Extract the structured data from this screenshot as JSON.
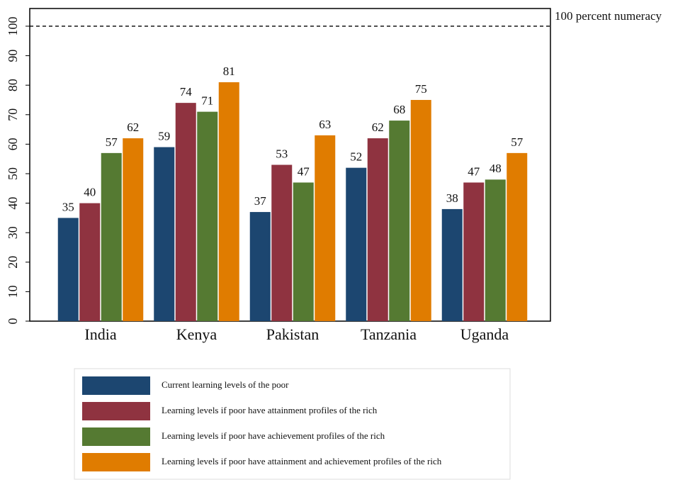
{
  "chart_data": {
    "type": "bar",
    "categories": [
      "India",
      "Kenya",
      "Pakistan",
      "Tanzania",
      "Uganda"
    ],
    "series": [
      {
        "name": "Current learning levels of the poor",
        "color": "#1c4670",
        "values": [
          35,
          59,
          37,
          52,
          38
        ]
      },
      {
        "name": "Learning levels if poor have attainment profiles of the rich",
        "color": "#8f3340",
        "values": [
          40,
          74,
          53,
          62,
          47
        ]
      },
      {
        "name": "Learning levels if poor have achievement profiles of the rich",
        "color": "#557a32",
        "values": [
          57,
          71,
          47,
          68,
          48
        ]
      },
      {
        "name": "Learning levels if poor have attainment and achievement profiles of the rich",
        "color": "#e07c00",
        "values": [
          62,
          81,
          63,
          75,
          57
        ]
      }
    ],
    "ylim": [
      0,
      106
    ],
    "yticks": [
      0,
      10,
      20,
      30,
      40,
      50,
      60,
      70,
      80,
      90,
      100
    ],
    "reference_line": {
      "value": 100,
      "label": "100 percent numeracy"
    },
    "grid": false,
    "legend": "bottom"
  }
}
